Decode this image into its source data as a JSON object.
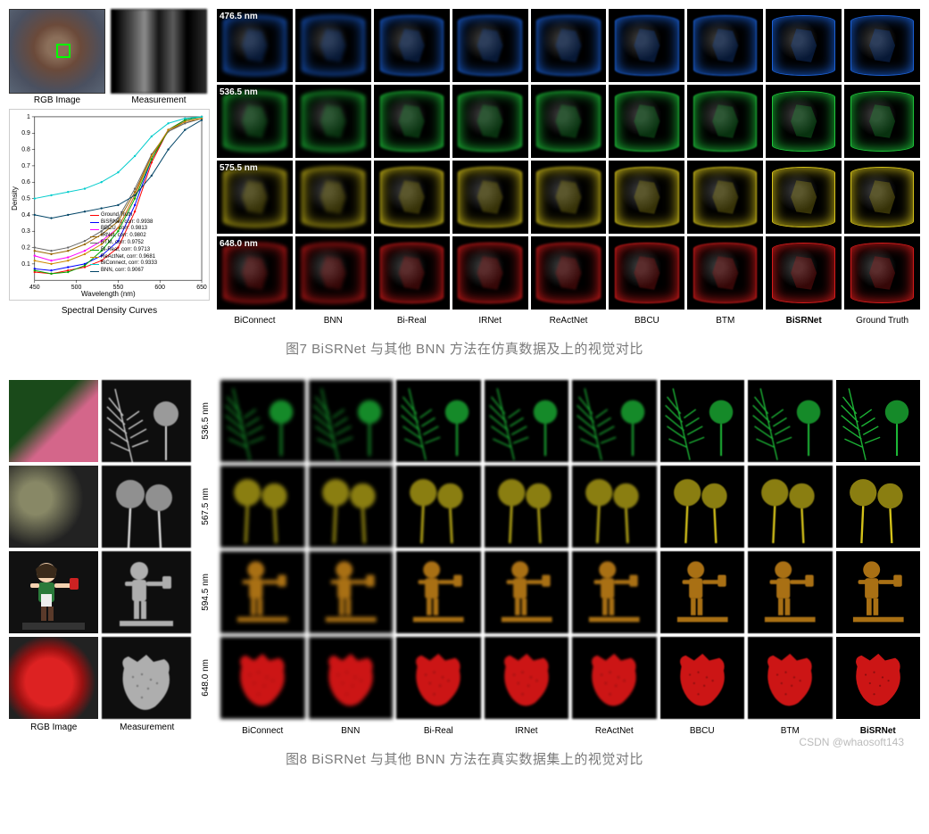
{
  "figure7": {
    "left_labels": {
      "rgb": "RGB Image",
      "meas": "Measurement",
      "curves": "Spectral Density Curves"
    },
    "wavelengths": [
      "476.5 nm",
      "536.5 nm",
      "575.5 nm",
      "648.0 nm"
    ],
    "row_colors": [
      "#1a5fd4",
      "#1ec43a",
      "#d4c21a",
      "#d41a1a"
    ],
    "methods": [
      "BiConnect",
      "BNN",
      "Bi-Real",
      "IRNet",
      "ReActNet",
      "BBCU",
      "BTM",
      "BiSRNet",
      "Ground Truth"
    ],
    "bold_method": "BiSRNet",
    "caption": "图7 BiSRNet 与其他 BNN 方法在仿真数据及上的视觉对比",
    "chart": {
      "xlabel": "Wavelength (nm)",
      "ylabel": "Density",
      "xlim": [
        450,
        650
      ],
      "ylim": [
        0,
        1.0
      ],
      "xticks": [
        450,
        500,
        550,
        600,
        650
      ],
      "yticks": [
        0.1,
        0.2,
        0.3,
        0.4,
        0.5,
        0.6,
        0.7,
        0.8,
        0.9,
        1.0
      ],
      "background": "#ffffff",
      "grid_color": "#e8e8e8",
      "series": [
        {
          "name": "Ground Truth",
          "color": "#ff0000",
          "corr": null,
          "dash": "",
          "marker": "o",
          "y": [
            0.05,
            0.04,
            0.06,
            0.08,
            0.12,
            0.2,
            0.42,
            0.72,
            0.92,
            0.98,
            1.0
          ]
        },
        {
          "name": "BiSRNet",
          "color": "#0000ff",
          "corr": 0.9938,
          "dash": "",
          "marker": "o",
          "y": [
            0.07,
            0.06,
            0.08,
            0.1,
            0.15,
            0.24,
            0.46,
            0.74,
            0.92,
            0.98,
            1.0
          ]
        },
        {
          "name": "BBCU",
          "color": "#ff00ff",
          "corr": 0.9813,
          "dash": "",
          "marker": "o",
          "y": [
            0.15,
            0.12,
            0.14,
            0.18,
            0.24,
            0.32,
            0.52,
            0.76,
            0.92,
            0.97,
            0.99
          ]
        },
        {
          "name": "IRNet",
          "color": "#996600",
          "corr": 0.9802,
          "dash": "",
          "marker": "o",
          "y": [
            0.18,
            0.16,
            0.18,
            0.22,
            0.28,
            0.36,
            0.54,
            0.76,
            0.91,
            0.97,
            0.99
          ]
        },
        {
          "name": "BTM",
          "color": "#666666",
          "corr": 0.9752,
          "dash": "",
          "marker": "o",
          "y": [
            0.2,
            0.18,
            0.2,
            0.24,
            0.3,
            0.38,
            0.56,
            0.77,
            0.91,
            0.96,
            0.99
          ]
        },
        {
          "name": "Bi-Real",
          "color": "#00aa00",
          "corr": 0.9713,
          "dash": "",
          "marker": "o",
          "y": [
            0.06,
            0.04,
            0.05,
            0.09,
            0.18,
            0.3,
            0.5,
            0.74,
            0.92,
            0.98,
            1.0
          ]
        },
        {
          "name": "ReActNet",
          "color": "#cc8800",
          "corr": 0.9681,
          "dash": "",
          "marker": "o",
          "y": [
            0.12,
            0.1,
            0.12,
            0.16,
            0.22,
            0.32,
            0.52,
            0.76,
            0.92,
            0.97,
            0.99
          ]
        },
        {
          "name": "BiConnect",
          "color": "#00cccc",
          "corr": 0.9333,
          "dash": "",
          "marker": "o",
          "y": [
            0.5,
            0.52,
            0.54,
            0.56,
            0.6,
            0.66,
            0.76,
            0.88,
            0.96,
            0.99,
            1.0
          ]
        },
        {
          "name": "BNN",
          "color": "#004466",
          "corr": 0.9067,
          "dash": "",
          "marker": "o",
          "y": [
            0.4,
            0.38,
            0.4,
            0.42,
            0.44,
            0.46,
            0.52,
            0.64,
            0.8,
            0.92,
            0.98
          ]
        }
      ],
      "x_samples": [
        450,
        470,
        490,
        510,
        530,
        550,
        570,
        590,
        610,
        630,
        650
      ]
    }
  },
  "figure8": {
    "left_labels": {
      "rgb": "RGB Image",
      "meas": "Measurement"
    },
    "wavelengths": [
      "536.5 nm",
      "567.5 nm",
      "594.5 nm",
      "648.0 nm"
    ],
    "row_colors": [
      "#1ec43a",
      "#d4c21a",
      "#d48c1a",
      "#ff1a1a"
    ],
    "methods": [
      "BiConnect",
      "BNN",
      "Bi-Real",
      "IRNet",
      "ReActNet",
      "BBCU",
      "BTM",
      "BiSRNet"
    ],
    "bold_method": "BiSRNet",
    "caption": "图8 BiSRNet 与其他 BNN 方法在真实数据集上的视觉对比",
    "subjects": [
      {
        "name": "fern-flower",
        "rgb_bg": "linear-gradient(135deg,#1a4a1a 40%,#d4668a 60%)",
        "shape": "fern"
      },
      {
        "name": "thistles",
        "rgb_bg": "radial-gradient(circle at 30% 40%,#888866 20%,#222 60%),radial-gradient(circle at 65% 50%,#cc3388 15%,transparent 40%)",
        "shape": "thistle"
      },
      {
        "name": "figurine",
        "rgb_bg": "linear-gradient(#111,#111)",
        "shape": "figurine"
      },
      {
        "name": "strawberry",
        "rgb_bg": "radial-gradient(circle at 45% 55%,#dd2222 35%,#991111 50%,#222 70%)",
        "shape": "strawberry"
      }
    ]
  },
  "watermark": "CSDN @whaosoft143"
}
